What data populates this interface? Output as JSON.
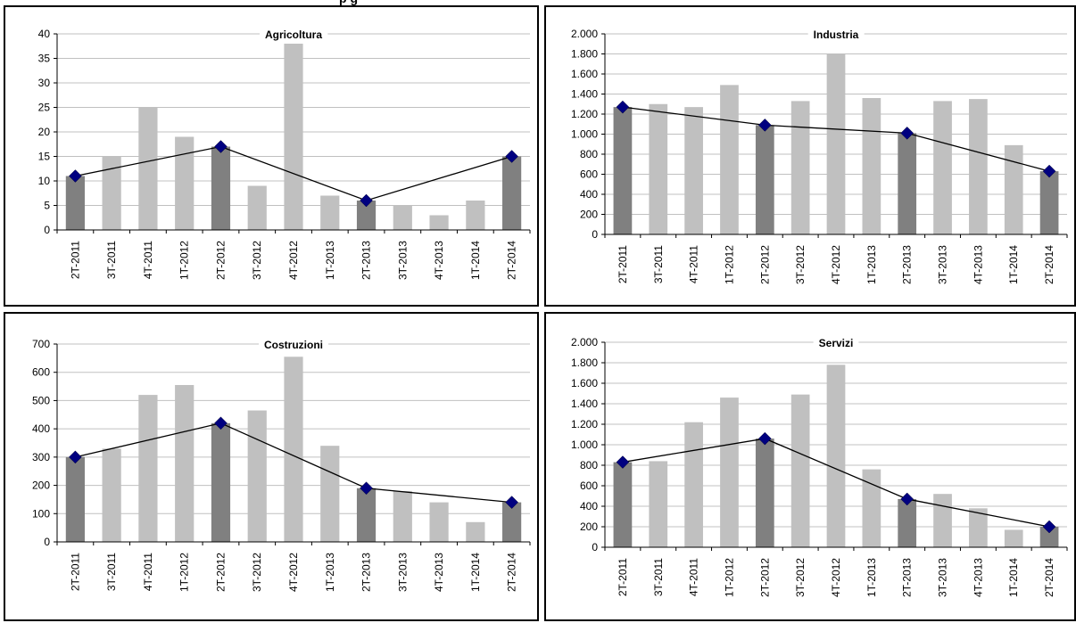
{
  "header_fragment": "p                               g",
  "colors": {
    "bar_highlight": "#808080",
    "bar_normal": "#c0c0c0",
    "line": "#000000",
    "marker": "#000080",
    "grid": "#c0c0c0"
  },
  "chart_data": [
    {
      "type": "bar",
      "title": "Agricoltura",
      "categories": [
        "2T-2011",
        "3T-2011",
        "4T-2011",
        "1T-2012",
        "2T-2012",
        "3T-2012",
        "4T-2012",
        "1T-2013",
        "2T-2013",
        "3T-2013",
        "4T-2013",
        "1T-2014",
        "2T-2014"
      ],
      "values": [
        11,
        15,
        25,
        19,
        17,
        9,
        38,
        7,
        6,
        5,
        3,
        6,
        15
      ],
      "highlight_indices": [
        0,
        4,
        8,
        12
      ],
      "line_points": [
        11,
        17,
        6,
        15
      ],
      "ylim": [
        0,
        40
      ],
      "yticks": [
        0,
        5,
        10,
        15,
        20,
        25,
        30,
        35,
        40
      ],
      "ytick_labels": [
        "0",
        "5",
        "10",
        "15",
        "20",
        "25",
        "30",
        "35",
        "40"
      ],
      "grid": true
    },
    {
      "type": "bar",
      "title": "Industria",
      "categories": [
        "2T-2011",
        "3T-2011",
        "4T-2011",
        "1T-2012",
        "2T-2012",
        "3T-2012",
        "4T-2012",
        "1T-2013",
        "2T-2013",
        "3T-2013",
        "4T-2013",
        "1T-2014",
        "2T-2014"
      ],
      "values": [
        1270,
        1300,
        1270,
        1490,
        1090,
        1330,
        1800,
        1360,
        1010,
        1330,
        1350,
        890,
        630
      ],
      "highlight_indices": [
        0,
        4,
        8,
        12
      ],
      "line_points": [
        1270,
        1090,
        1010,
        630
      ],
      "ylim": [
        0,
        2000
      ],
      "yticks": [
        0,
        200,
        400,
        600,
        800,
        1000,
        1200,
        1400,
        1600,
        1800,
        2000
      ],
      "ytick_labels": [
        "0",
        "200",
        "400",
        "600",
        "800",
        "1.000",
        "1.200",
        "1.400",
        "1.600",
        "1.800",
        "2.000"
      ],
      "grid": true
    },
    {
      "type": "bar",
      "title": "Costruzioni",
      "categories": [
        "2T-2011",
        "3T-2011",
        "4T-2011",
        "1T-2012",
        "2T-2012",
        "3T-2012",
        "4T-2012",
        "1T-2013",
        "2T-2013",
        "3T-2013",
        "4T-2013",
        "1T-2014",
        "2T-2014"
      ],
      "values": [
        300,
        330,
        520,
        555,
        420,
        465,
        655,
        340,
        190,
        180,
        140,
        70,
        140
      ],
      "highlight_indices": [
        0,
        4,
        8,
        12
      ],
      "line_points": [
        300,
        420,
        190,
        140
      ],
      "ylim": [
        0,
        700
      ],
      "yticks": [
        0,
        100,
        200,
        300,
        400,
        500,
        600,
        700
      ],
      "ytick_labels": [
        "0",
        "100",
        "200",
        "300",
        "400",
        "500",
        "600",
        "700"
      ],
      "grid": true
    },
    {
      "type": "bar",
      "title": "Servizi",
      "categories": [
        "2T-2011",
        "3T-2011",
        "4T-2011",
        "1T-2012",
        "2T-2012",
        "3T-2012",
        "4T-2012",
        "1T-2013",
        "2T-2013",
        "3T-2013",
        "4T-2013",
        "1T-2014",
        "2T-2014"
      ],
      "values": [
        830,
        840,
        1220,
        1460,
        1060,
        1490,
        1780,
        760,
        470,
        520,
        380,
        170,
        200
      ],
      "highlight_indices": [
        0,
        4,
        8,
        12
      ],
      "line_points": [
        830,
        1060,
        470,
        200
      ],
      "ylim": [
        0,
        2000
      ],
      "yticks": [
        0,
        200,
        400,
        600,
        800,
        1000,
        1200,
        1400,
        1600,
        1800,
        2000
      ],
      "ytick_labels": [
        "0",
        "200",
        "400",
        "600",
        "800",
        "1.000",
        "1.200",
        "1.400",
        "1.600",
        "1.800",
        "2.000"
      ],
      "grid": true
    }
  ]
}
